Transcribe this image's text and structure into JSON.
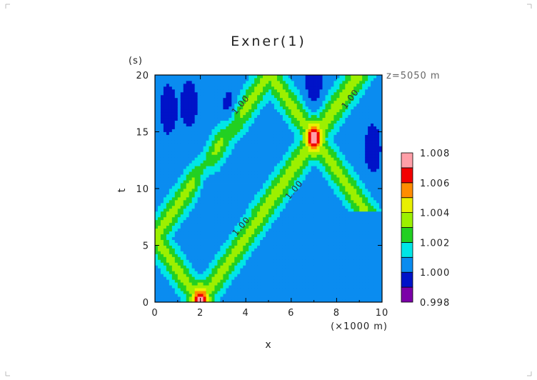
{
  "chart_data": {
    "type": "heatmap",
    "title": "Exner(1)",
    "xlabel": "x",
    "xunits": "(×1000 m)",
    "ylabel": "t",
    "yunits": "(s)",
    "annotation": "z=5050 m",
    "xlim": [
      0,
      10
    ],
    "ylim": [
      0,
      20
    ],
    "xticks": [
      "0",
      "2",
      "4",
      "6",
      "8",
      "10"
    ],
    "yticks": [
      "0",
      "5",
      "10",
      "15",
      "20"
    ],
    "contour_labels": [
      "1.00",
      "1.00",
      "1.00",
      "1.00"
    ],
    "colorbar": {
      "labels": [
        "1.008",
        "1.006",
        "1.004",
        "1.002",
        "1.000",
        "0.998"
      ],
      "bins": [
        {
          "range": [
            0.998,
            0.999
          ],
          "color": "#7b00a8"
        },
        {
          "range": [
            0.999,
            1.0
          ],
          "color": "#0013c8"
        },
        {
          "range": [
            1.0,
            1.001
          ],
          "color": "#0a8cf0"
        },
        {
          "range": [
            1.001,
            1.002
          ],
          "color": "#00e6e6"
        },
        {
          "range": [
            1.002,
            1.003
          ],
          "color": "#22d022"
        },
        {
          "range": [
            1.003,
            1.004
          ],
          "color": "#9cf000"
        },
        {
          "range": [
            1.004,
            1.005
          ],
          "color": "#e8f000"
        },
        {
          "range": [
            1.005,
            1.006
          ],
          "color": "#ff8c00"
        },
        {
          "range": [
            1.006,
            1.007
          ],
          "color": "#f20000"
        },
        {
          "range": [
            1.007,
            1.008
          ],
          "color": "#ff9fa8"
        }
      ]
    },
    "field": {
      "pulses": [
        {
          "x_start": 2.0,
          "t_start": 0.0,
          "speed_km_per_s": 0.35,
          "peak": 1.0075
        },
        {
          "x_start": 2.0,
          "t_start": 0.0,
          "speed_km_per_s": -0.35,
          "peak": 1.0075
        }
      ],
      "focus_points": [
        {
          "x": 2.0,
          "t": 0.0,
          "value": 1.0078
        },
        {
          "x": 7.0,
          "t": 14.5,
          "value": 1.0077
        }
      ],
      "background": 1.0005,
      "low_blobs": [
        {
          "x": 0.6,
          "t": 17.0,
          "value": 0.9993
        },
        {
          "x": 1.5,
          "t": 17.5,
          "value": 0.9993
        },
        {
          "x": 2.2,
          "t": 11.5,
          "value": 0.9993
        },
        {
          "x": 3.3,
          "t": 16.5,
          "value": 0.9993
        },
        {
          "x": 7.0,
          "t": 19.5,
          "value": 0.9993
        },
        {
          "x": 9.6,
          "t": 13.5,
          "value": 0.9993
        }
      ]
    }
  }
}
